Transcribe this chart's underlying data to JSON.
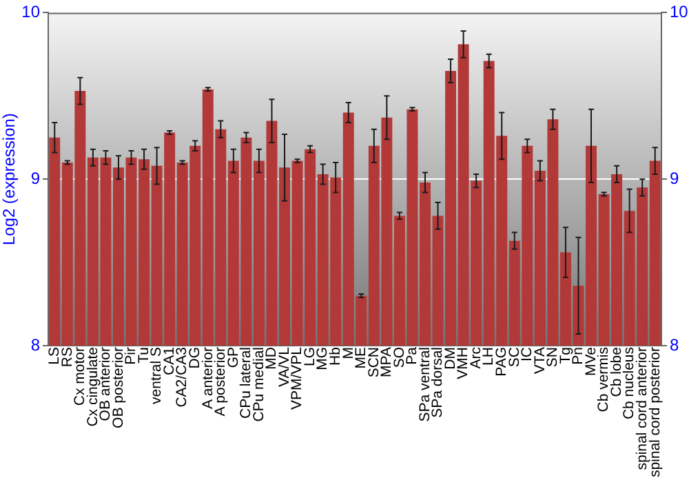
{
  "chart_data": {
    "type": "bar",
    "ylabel": "Log2 (expression)",
    "categories": [
      "LS",
      "RS",
      "Cx motor",
      "Cx cingulate",
      "OB anterior",
      "OB posterior",
      "Pir",
      "Tu",
      "ventral S",
      "CA1",
      "CA2/CA3",
      "DG",
      "A anterior",
      "A posterior",
      "GP",
      "CPu lateral",
      "CPu medial",
      "MD",
      "VA/VL",
      "VPM/VPL",
      "LG",
      "MG",
      "Hb",
      "M",
      "ME",
      "SCN",
      "MPA",
      "SO",
      "Pa",
      "SPa ventral",
      "SPa dorsal",
      "DM",
      "VMH",
      "Arc",
      "LH",
      "PAG",
      "SC",
      "IC",
      "VTA",
      "SN",
      "Tg",
      "Pn",
      "MVe",
      "Cb vermis",
      "Cb lobe",
      "Cb nucleus",
      "spinal cord anterior",
      "spinal cord posterior"
    ],
    "values": [
      9.25,
      9.1,
      9.53,
      9.13,
      9.13,
      9.07,
      9.13,
      9.12,
      9.08,
      9.28,
      9.1,
      9.2,
      9.54,
      9.3,
      9.11,
      9.25,
      9.11,
      9.35,
      9.07,
      9.11,
      9.18,
      9.03,
      9.01,
      9.4,
      8.3,
      9.2,
      9.37,
      8.78,
      9.42,
      8.98,
      8.78,
      9.65,
      9.81,
      8.99,
      9.71,
      9.26,
      8.63,
      9.2,
      9.05,
      9.36,
      8.56,
      8.36,
      9.2,
      8.91,
      9.03,
      8.81,
      8.95,
      9.11
    ],
    "errors": [
      0.09,
      0.01,
      0.08,
      0.05,
      0.04,
      0.07,
      0.04,
      0.06,
      0.11,
      0.01,
      0.01,
      0.03,
      0.01,
      0.05,
      0.07,
      0.03,
      0.07,
      0.13,
      0.2,
      0.01,
      0.02,
      0.06,
      0.09,
      0.06,
      0.01,
      0.1,
      0.13,
      0.02,
      0.01,
      0.06,
      0.08,
      0.07,
      0.08,
      0.04,
      0.04,
      0.14,
      0.05,
      0.04,
      0.06,
      0.06,
      0.15,
      0.29,
      0.22,
      0.01,
      0.05,
      0.13,
      0.05,
      0.08
    ],
    "color": "#b33838",
    "ylim": [
      8,
      10
    ],
    "yticks": [
      8,
      9,
      10
    ],
    "y2lim": [
      8,
      10
    ],
    "y2ticks": [
      8,
      9,
      10
    ],
    "grid": "y"
  }
}
